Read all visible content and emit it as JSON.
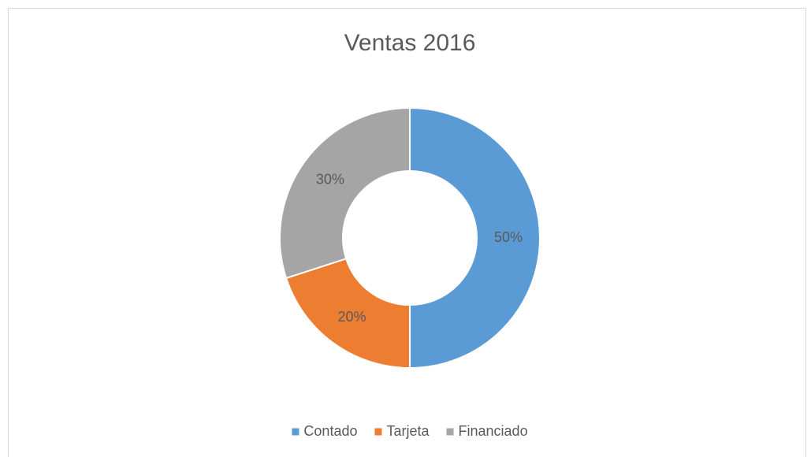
{
  "chart_data": {
    "type": "donut",
    "title": "Ventas 2016",
    "categories": [
      "Contado",
      "Tarjeta",
      "Financiado"
    ],
    "values": [
      50,
      20,
      30
    ],
    "value_labels": [
      "50%",
      "20%",
      "30%"
    ],
    "colors": [
      "#5b9bd5",
      "#ed7d31",
      "#a5a5a5"
    ],
    "legend": "bottom"
  }
}
